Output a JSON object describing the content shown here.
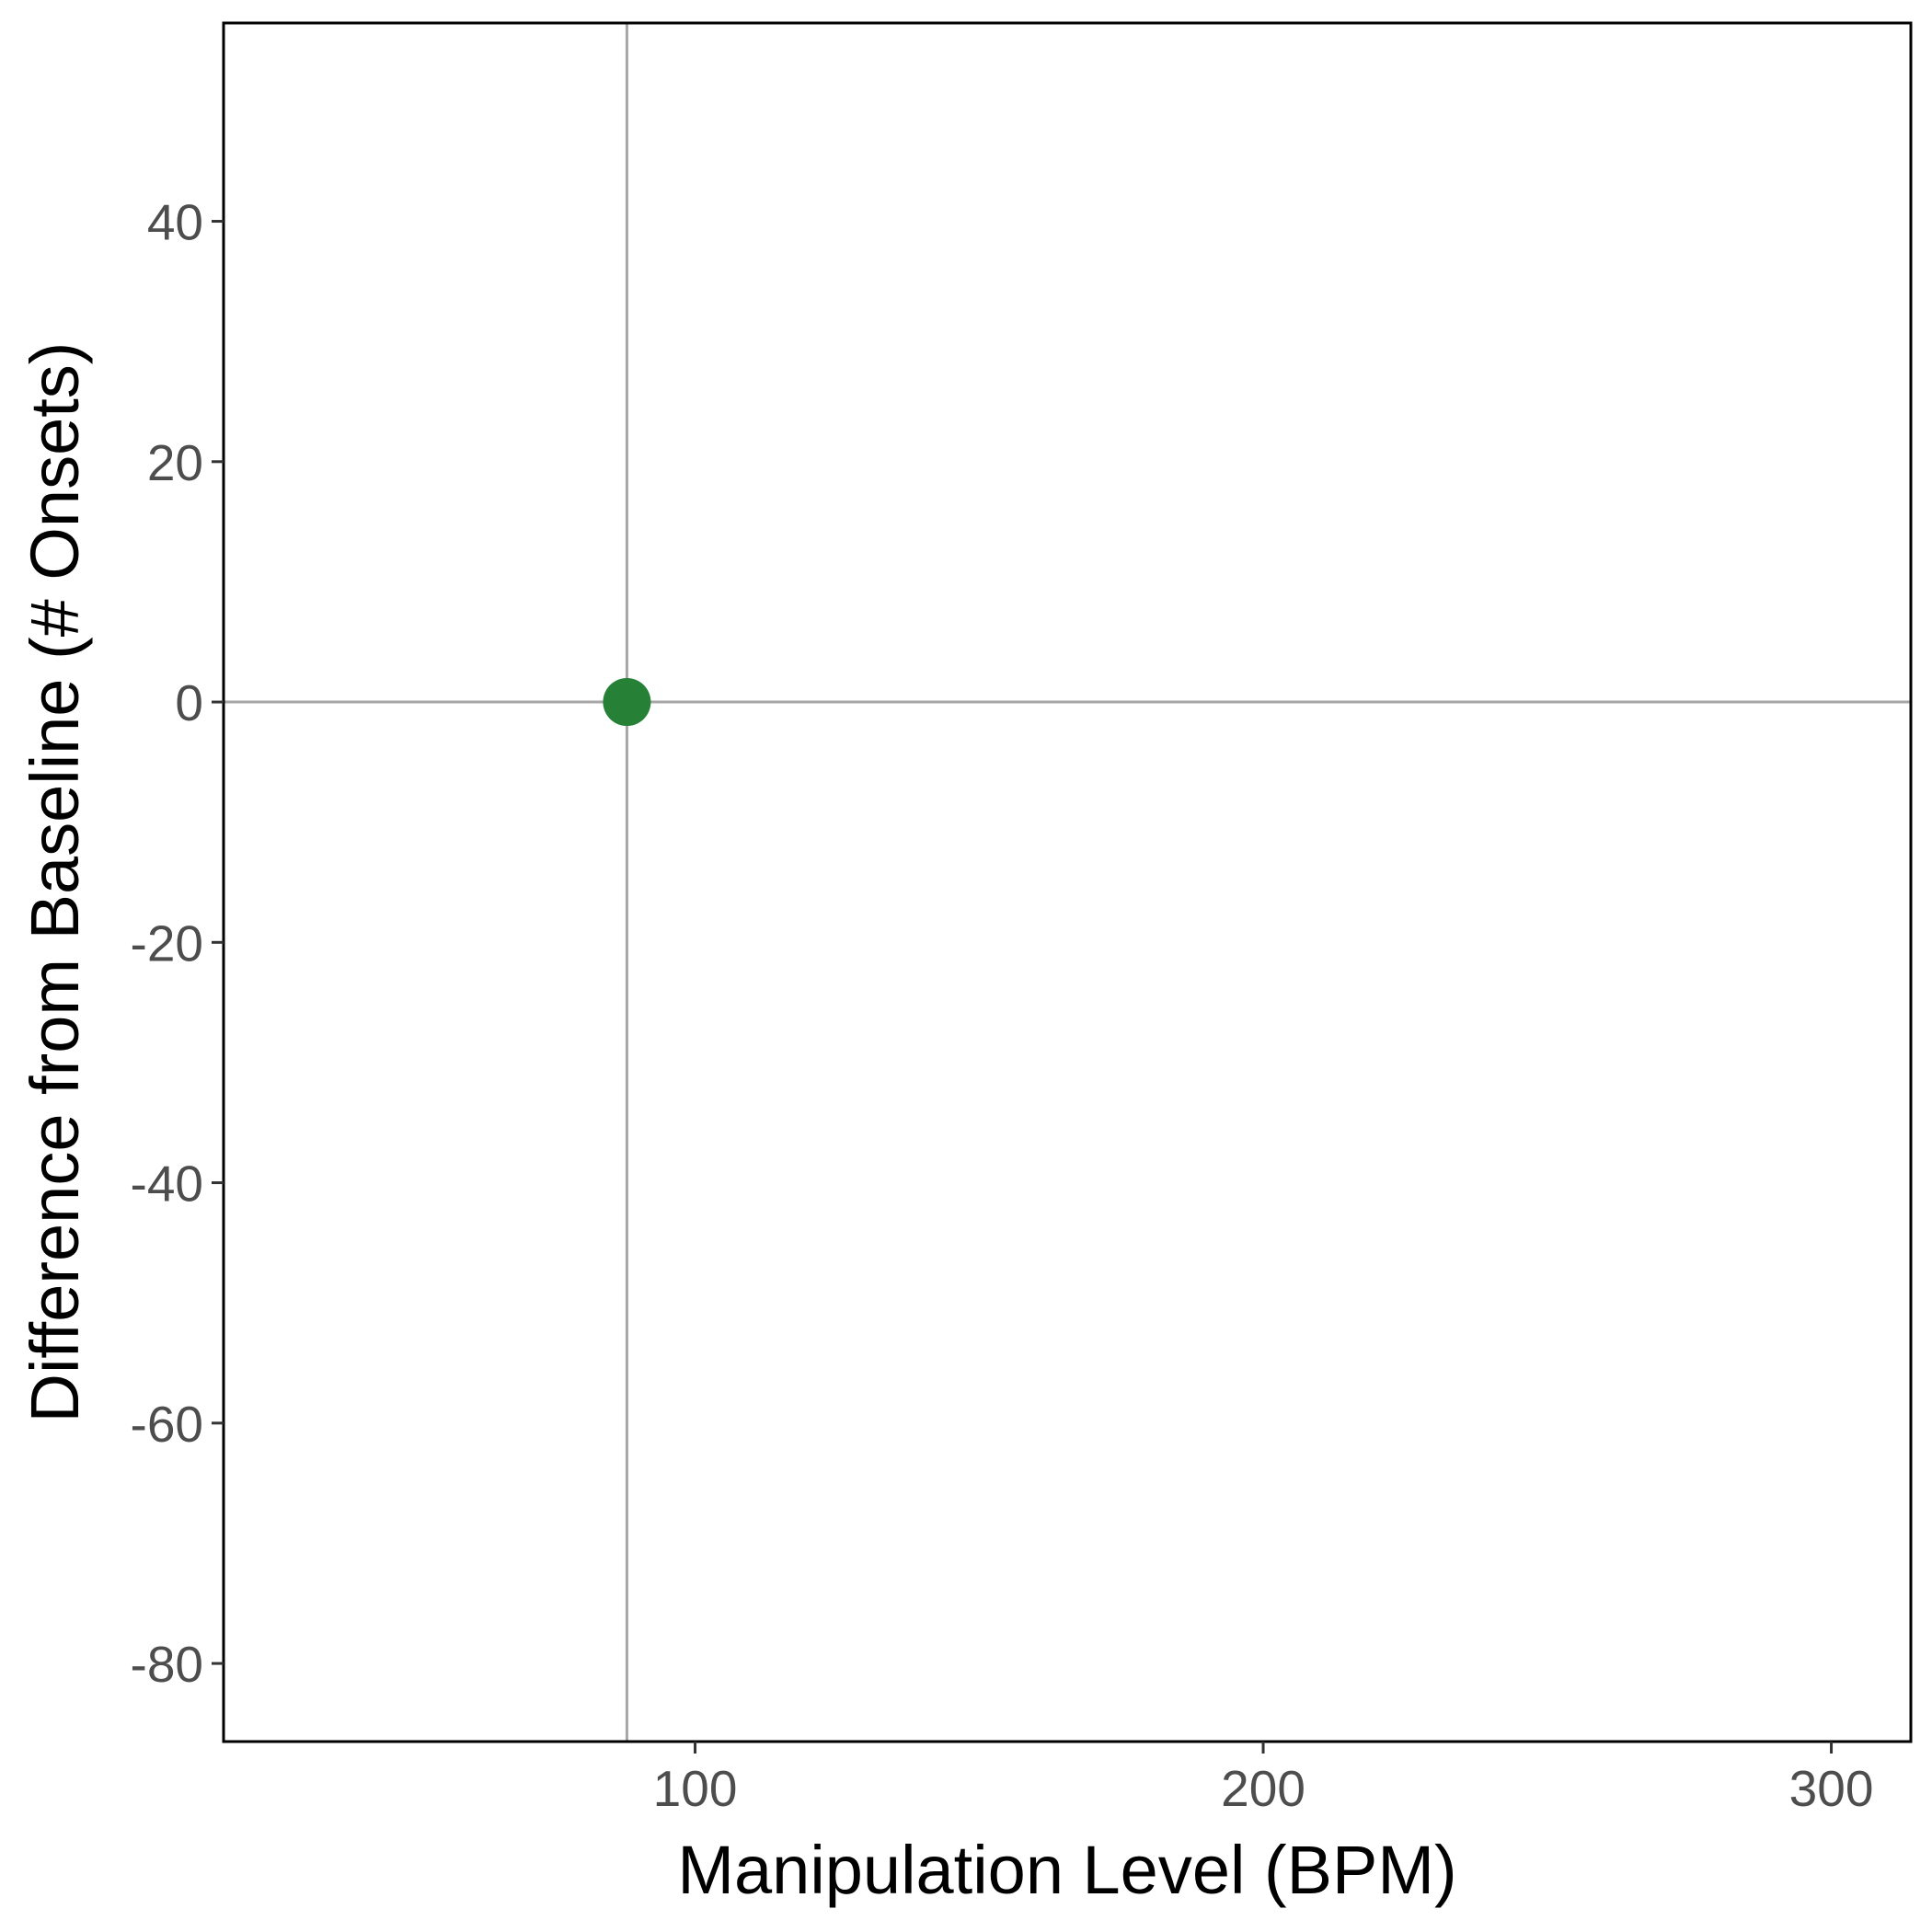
{
  "chart_data": {
    "type": "scatter",
    "title": "",
    "xlabel": "Manipulation Level (BPM)",
    "ylabel": "Difference from Baseline (# Onsets)",
    "xlim": [
      17,
      314
    ],
    "ylim": [
      -86.5,
      56.5
    ],
    "xticks": [
      100,
      200,
      300
    ],
    "yticks": [
      -80,
      -60,
      -40,
      -20,
      0,
      20,
      40
    ],
    "grid": false,
    "reference_lines": {
      "x": 88,
      "y": 0
    },
    "series": [
      {
        "points": [
          {
            "x": 88,
            "y": 0
          }
        ]
      }
    ],
    "colors": {
      "point": "#268136",
      "reference_line": "#a6a6a6",
      "frame": "#000000",
      "tick_label": "#4d4d4d"
    }
  }
}
